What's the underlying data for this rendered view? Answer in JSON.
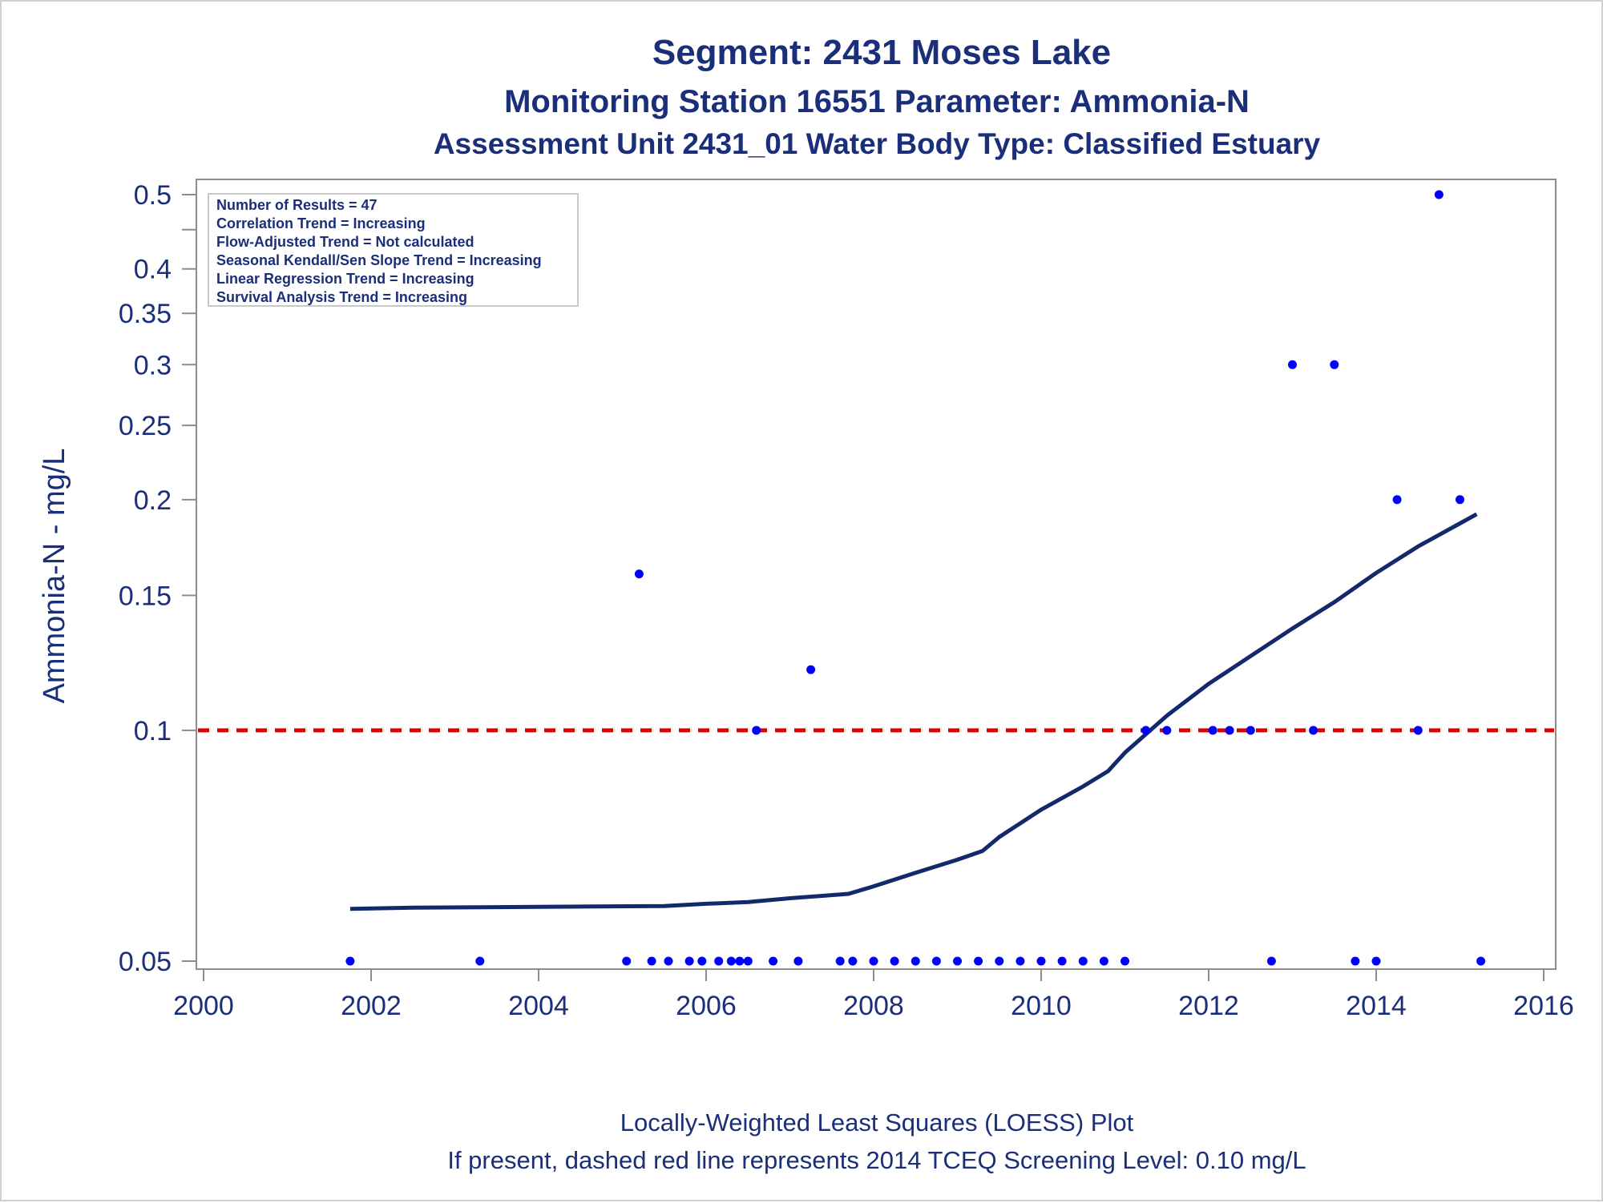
{
  "chart_data": {
    "type": "scatter",
    "title": "Segment: 2431  Moses Lake",
    "subtitle_1": "Monitoring Station 16551 Parameter: Ammonia-N",
    "subtitle_2": "Assessment Unit 2431_01   Water Body Type: Classified Estuary",
    "xlabel": "",
    "ylabel": "Ammonia-N - mg/L",
    "y_scale": "log",
    "xlim": [
      2000,
      2016
    ],
    "ylim": [
      0.05,
      0.5
    ],
    "x_ticks": [
      "2000",
      "2002",
      "2004",
      "2006",
      "2008",
      "2010",
      "2012",
      "2014",
      "2016"
    ],
    "y_ticks": [
      "0.5",
      "0.4",
      "0.35",
      "0.3",
      "0.25",
      "0.2",
      "0.15",
      "0.1",
      "0.05"
    ],
    "y_tick_values": [
      0.5,
      0.4,
      0.35,
      0.3,
      0.25,
      0.2,
      0.15,
      0.1,
      0.05
    ],
    "grid": false,
    "stats_box": {
      "placement": "top-left",
      "lines": [
        "Number of Results = 47",
        "Correlation Trend = Increasing",
        "Flow-Adjusted Trend = Not calculated",
        "Seasonal Kendall/Sen Slope Trend = Increasing",
        "Linear Regression Trend = Increasing",
        "Survival Analysis Trend = Increasing"
      ]
    },
    "series": [
      {
        "kind": "scatter",
        "color": "#0000ff",
        "points": [
          [
            2001.75,
            0.05
          ],
          [
            2003.3,
            0.05
          ],
          [
            2005.05,
            0.05
          ],
          [
            2005.2,
            0.16
          ],
          [
            2005.35,
            0.05
          ],
          [
            2005.55,
            0.05
          ],
          [
            2005.8,
            0.05
          ],
          [
            2005.95,
            0.05
          ],
          [
            2006.15,
            0.05
          ],
          [
            2006.3,
            0.05
          ],
          [
            2006.4,
            0.05
          ],
          [
            2006.5,
            0.05
          ],
          [
            2006.6,
            0.1
          ],
          [
            2006.8,
            0.05
          ],
          [
            2007.1,
            0.05
          ],
          [
            2007.25,
            0.12
          ],
          [
            2007.6,
            0.05
          ],
          [
            2007.75,
            0.05
          ],
          [
            2008.0,
            0.05
          ],
          [
            2008.25,
            0.05
          ],
          [
            2008.5,
            0.05
          ],
          [
            2008.75,
            0.05
          ],
          [
            2009.0,
            0.05
          ],
          [
            2009.25,
            0.05
          ],
          [
            2009.5,
            0.05
          ],
          [
            2009.75,
            0.05
          ],
          [
            2010.0,
            0.05
          ],
          [
            2010.25,
            0.05
          ],
          [
            2010.5,
            0.05
          ],
          [
            2010.75,
            0.05
          ],
          [
            2011.0,
            0.05
          ],
          [
            2011.25,
            0.1
          ],
          [
            2011.5,
            0.1
          ],
          [
            2012.05,
            0.1
          ],
          [
            2012.25,
            0.1
          ],
          [
            2012.5,
            0.1
          ],
          [
            2012.75,
            0.05
          ],
          [
            2013.0,
            0.3
          ],
          [
            2013.25,
            0.1
          ],
          [
            2013.5,
            0.3
          ],
          [
            2013.75,
            0.05
          ],
          [
            2014.0,
            0.05
          ],
          [
            2014.25,
            0.2
          ],
          [
            2014.5,
            0.1
          ],
          [
            2014.75,
            0.5
          ],
          [
            2015.0,
            0.2
          ],
          [
            2015.25,
            0.05
          ]
        ]
      },
      {
        "kind": "loess",
        "color": "#12296b",
        "points": [
          [
            2001.75,
            0.0585
          ],
          [
            2002.5,
            0.0587
          ],
          [
            2003.5,
            0.0588
          ],
          [
            2004.5,
            0.0589
          ],
          [
            2005.5,
            0.059
          ],
          [
            2006.0,
            0.0594
          ],
          [
            2006.5,
            0.0597
          ],
          [
            2007.0,
            0.0604
          ],
          [
            2007.7,
            0.0612
          ],
          [
            2008.0,
            0.0626
          ],
          [
            2008.5,
            0.0652
          ],
          [
            2009.0,
            0.0678
          ],
          [
            2009.3,
            0.0696
          ],
          [
            2009.5,
            0.0726
          ],
          [
            2010.0,
            0.0788
          ],
          [
            2010.5,
            0.0845
          ],
          [
            2010.8,
            0.0885
          ],
          [
            2011.0,
            0.0935
          ],
          [
            2011.5,
            0.1045
          ],
          [
            2012.0,
            0.115
          ],
          [
            2012.5,
            0.125
          ],
          [
            2013.0,
            0.1358
          ],
          [
            2013.5,
            0.147
          ],
          [
            2014.0,
            0.1605
          ],
          [
            2014.5,
            0.1738
          ],
          [
            2015.0,
            0.1862
          ],
          [
            2015.2,
            0.1915
          ]
        ]
      },
      {
        "kind": "reference-line",
        "color": "#e00000",
        "y": 0.1
      }
    ],
    "footnote_1": "Locally-Weighted Least Squares (LOESS) Plot",
    "footnote_2": "If present, dashed red line represents 2014 TCEQ Screening Level: 0.10 mg/L"
  }
}
